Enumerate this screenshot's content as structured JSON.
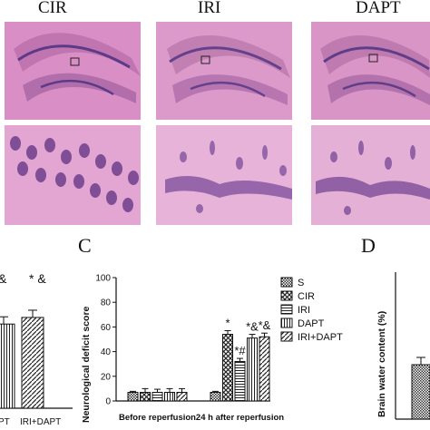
{
  "histology": {
    "column_titles": [
      "CIR",
      "IRI",
      "DAPT"
    ]
  },
  "panel_b_partial": {
    "annotation": "* &",
    "left_annotation": "&",
    "x_labels": [
      "PT",
      "IRI+DAPT"
    ],
    "values": [
      64,
      69
    ]
  },
  "panel_c": {
    "letter": "C",
    "chart_data": {
      "type": "bar",
      "ylabel": "Neurological deficit score",
      "ylim": [
        0,
        100
      ],
      "yticks": [
        0,
        20,
        40,
        60,
        80,
        100
      ],
      "categories": [
        "Before reperfusion",
        "24 h after reperfusion"
      ],
      "legend_position": "right",
      "series": [
        {
          "name": "S",
          "values": [
            7,
            7
          ]
        },
        {
          "name": "CIR",
          "values": [
            7,
            54
          ]
        },
        {
          "name": "IRI",
          "values": [
            7,
            32
          ]
        },
        {
          "name": "DAPT",
          "values": [
            7,
            51
          ]
        },
        {
          "name": "IRI+DAPT",
          "values": [
            7,
            52
          ]
        }
      ],
      "annotations": [
        "*",
        "*#",
        "*&",
        "*&"
      ]
    }
  },
  "panel_d_partial": {
    "letter": "D",
    "ylabel": "Brain water content (%)"
  }
}
